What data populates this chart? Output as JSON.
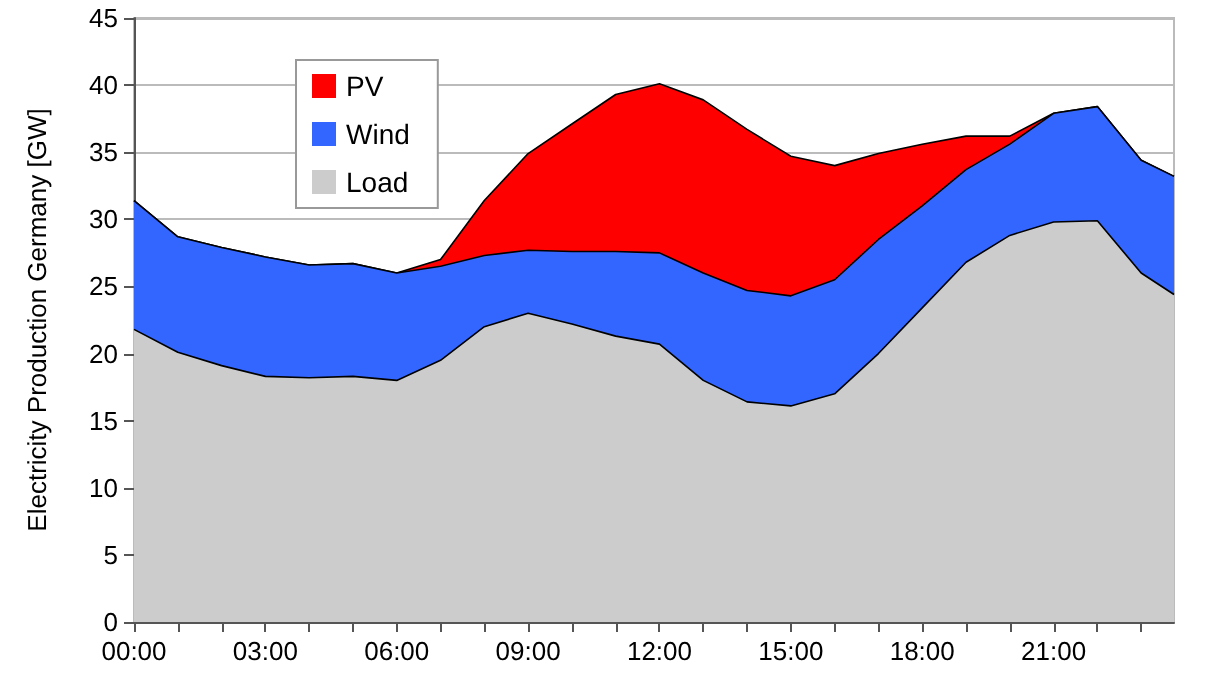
{
  "chart_data": {
    "type": "area",
    "stacked": true,
    "ylabel": "Electricity Production Germany [GW]",
    "x": [
      0,
      1,
      2,
      3,
      4,
      5,
      6,
      7,
      8,
      9,
      10,
      11,
      12,
      13,
      14,
      15,
      16,
      17,
      18,
      19,
      20,
      21,
      22,
      23,
      23.75
    ],
    "series": [
      {
        "name": "Load",
        "color": "#cccccc",
        "values": [
          21.8,
          20.1,
          19.1,
          18.3,
          18.2,
          18.3,
          18.0,
          19.5,
          22.0,
          23.0,
          22.2,
          21.3,
          20.7,
          18.0,
          16.4,
          16.1,
          17.0,
          20.0,
          23.4,
          26.8,
          28.8,
          29.8,
          29.9,
          26.0,
          24.4
        ]
      },
      {
        "name": "Wind",
        "color": "#3366ff",
        "values": [
          9.6,
          8.6,
          8.8,
          8.9,
          8.4,
          8.4,
          8.0,
          7.0,
          5.3,
          4.7,
          5.4,
          6.3,
          6.8,
          8.0,
          8.3,
          8.2,
          8.5,
          8.5,
          7.6,
          6.9,
          6.8,
          8.1,
          8.5,
          8.4,
          8.8
        ]
      },
      {
        "name": "PV",
        "color": "#ff0000",
        "values": [
          0,
          0,
          0,
          0,
          0,
          0,
          0,
          0.5,
          4.1,
          7.2,
          9.5,
          11.7,
          12.6,
          12.9,
          12.0,
          10.4,
          8.5,
          6.4,
          4.6,
          2.5,
          0.6,
          0,
          0,
          0,
          0
        ]
      }
    ],
    "xlim": [
      0,
      23.75
    ],
    "xticks": [
      {
        "value": 0,
        "label": "00:00"
      },
      {
        "value": 1,
        "label": null
      },
      {
        "value": 2,
        "label": null
      },
      {
        "value": 3,
        "label": "03:00"
      },
      {
        "value": 4,
        "label": null
      },
      {
        "value": 5,
        "label": null
      },
      {
        "value": 6,
        "label": "06:00"
      },
      {
        "value": 7,
        "label": null
      },
      {
        "value": 8,
        "label": null
      },
      {
        "value": 9,
        "label": "09:00"
      },
      {
        "value": 10,
        "label": null
      },
      {
        "value": 11,
        "label": null
      },
      {
        "value": 12,
        "label": "12:00"
      },
      {
        "value": 13,
        "label": null
      },
      {
        "value": 14,
        "label": null
      },
      {
        "value": 15,
        "label": "15:00"
      },
      {
        "value": 16,
        "label": null
      },
      {
        "value": 17,
        "label": null
      },
      {
        "value": 18,
        "label": "18:00"
      },
      {
        "value": 19,
        "label": null
      },
      {
        "value": 20,
        "label": null
      },
      {
        "value": 21,
        "label": "21:00"
      },
      {
        "value": 22,
        "label": null
      },
      {
        "value": 23,
        "label": null
      }
    ],
    "ylim": [
      0,
      45
    ],
    "yticks": [
      0,
      5,
      10,
      15,
      20,
      25,
      30,
      35,
      40,
      45
    ],
    "grid": "y",
    "legend": "top left",
    "marker": "none",
    "line_style": "solid"
  }
}
